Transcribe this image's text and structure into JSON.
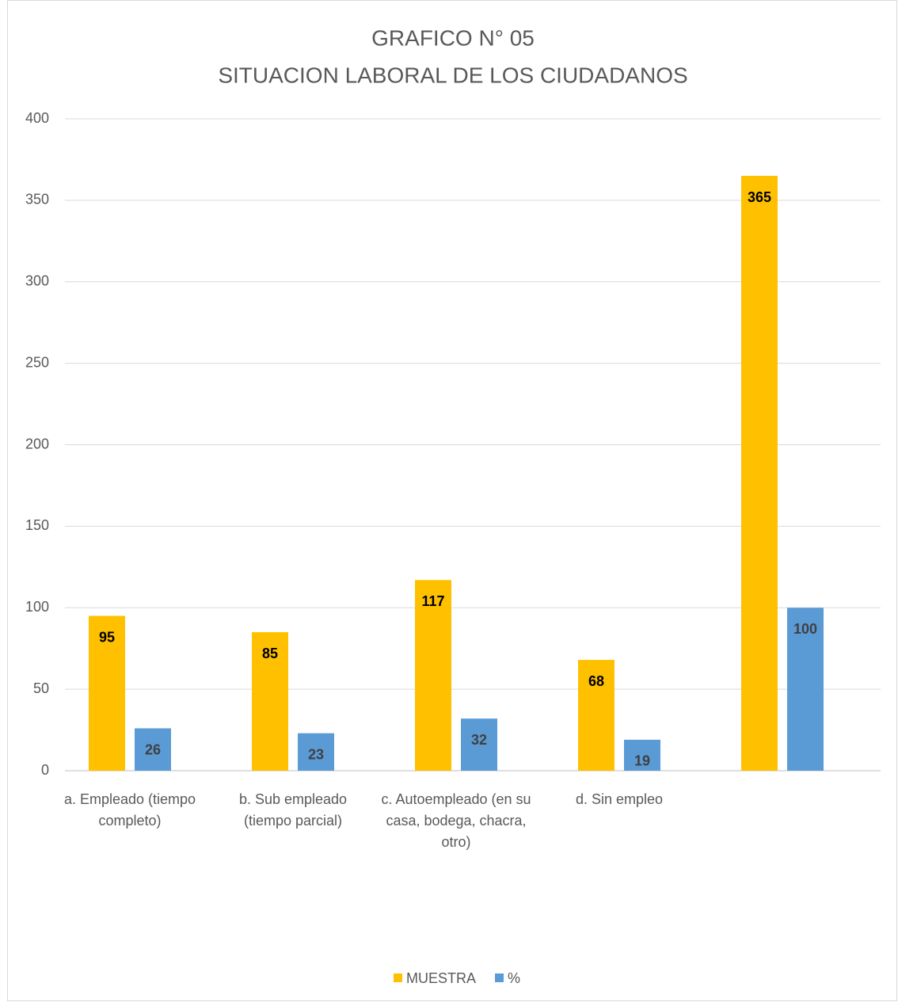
{
  "chart_data": {
    "type": "bar",
    "title": "GRAFICO N° 05",
    "subtitle": "SITUACION LABORAL DE LOS CIUDADANOS",
    "categories": [
      "a. Empleado (tiempo completo)",
      "b. Sub empleado (tiempo parcial)",
      "c. Autoempleado (en su casa, bodega, chacra, otro)",
      "d. Sin empleo",
      null
    ],
    "series": [
      {
        "name": "MUESTRA",
        "color": "#FFC000",
        "values": [
          95,
          85,
          117,
          68,
          365
        ]
      },
      {
        "name": "%",
        "color": "#5B9BD5",
        "values": [
          26,
          23,
          32,
          19,
          100
        ]
      }
    ],
    "ylim": [
      0,
      400
    ],
    "yticks": [
      0,
      50,
      100,
      150,
      200,
      250,
      300,
      350,
      400
    ],
    "grid": true,
    "legend": "bottom"
  }
}
